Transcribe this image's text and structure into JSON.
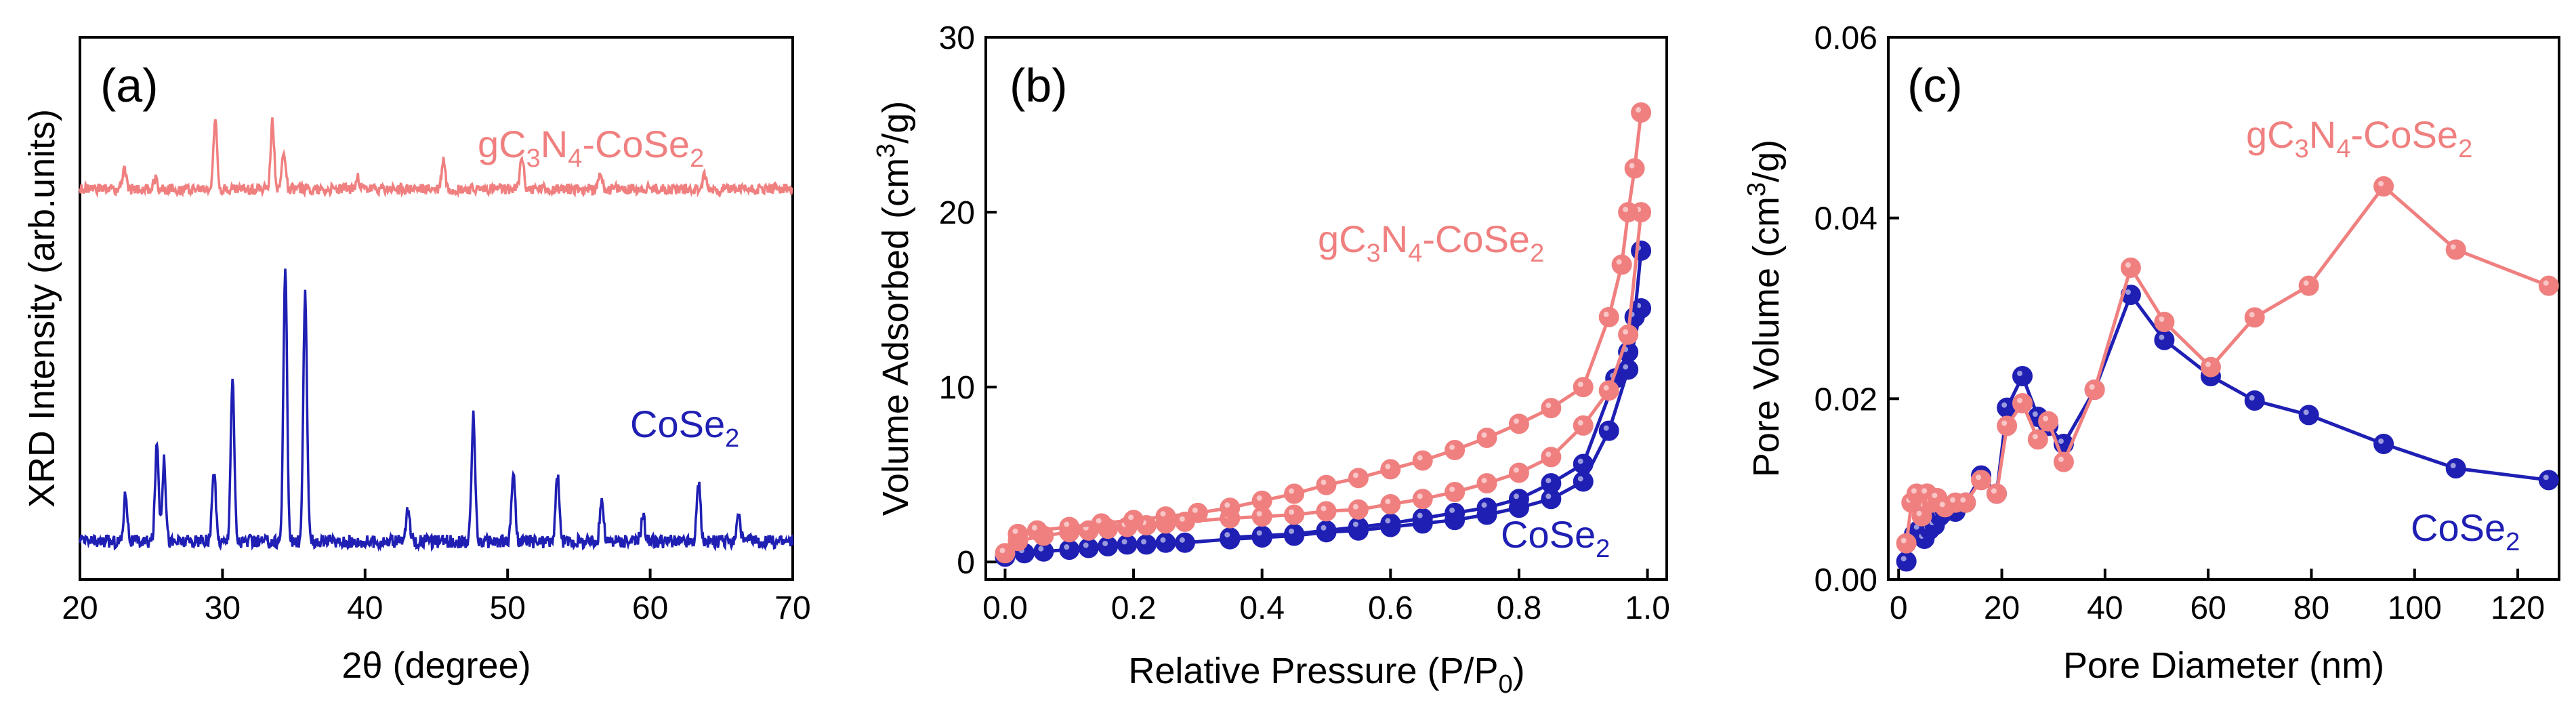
{
  "colors": {
    "gC3N4-CoSe2": "#F08080",
    "CoSe2": "#1F1FB4",
    "axis": "#000000"
  },
  "chart_data": [
    {
      "type": "line",
      "panel_label": "(a)",
      "title": "",
      "xlabel": "2θ (degree)",
      "ylabel": "XRD Intensity (arb.units)",
      "xlim": [
        20,
        70
      ],
      "xticks": [
        "20",
        "30",
        "40",
        "50",
        "60",
        "70"
      ],
      "ylim": [
        0,
        10
      ],
      "yticks_visible": false,
      "series": [
        {
          "name": "gC3N4-CoSe2",
          "label_parts": [
            "gC",
            "3",
            "N",
            "4",
            "-CoSe",
            "2"
          ],
          "baseline": 7.2,
          "noise": 0.2,
          "peaks": [
            [
              23.1,
              0.35
            ],
            [
              25.3,
              0.2
            ],
            [
              29.5,
              1.3
            ],
            [
              33.5,
              1.25
            ],
            [
              34.3,
              0.7
            ],
            [
              39.5,
              0.2
            ],
            [
              45.5,
              0.55
            ],
            [
              51.0,
              0.6
            ],
            [
              56.5,
              0.3
            ],
            [
              63.8,
              0.25
            ]
          ]
        },
        {
          "name": "CoSe2",
          "label_parts": [
            "CoSe",
            "2"
          ],
          "baseline": 0.7,
          "noise": 0.25,
          "peaks": [
            [
              23.2,
              0.9
            ],
            [
              25.4,
              1.8
            ],
            [
              25.9,
              1.5
            ],
            [
              29.4,
              1.3
            ],
            [
              30.7,
              3.0
            ],
            [
              34.4,
              5.1
            ],
            [
              35.8,
              4.6
            ],
            [
              43.0,
              0.6
            ],
            [
              47.6,
              2.3
            ],
            [
              50.4,
              1.3
            ],
            [
              53.5,
              1.2
            ],
            [
              56.6,
              0.8
            ],
            [
              59.5,
              0.5
            ],
            [
              63.4,
              1.1
            ],
            [
              66.2,
              0.5
            ]
          ]
        }
      ]
    },
    {
      "type": "line",
      "panel_label": "(b)",
      "title": "",
      "xlabel_parts": [
        "Relative Pressure (P/P",
        "0",
        ")"
      ],
      "ylabel_parts": [
        "Volume Adsorbed (cm",
        "3",
        "/g)"
      ],
      "xlim": [
        -0.03,
        1.03
      ],
      "xticks": [
        "0.0",
        "0.2",
        "0.4",
        "0.6",
        "0.8",
        "1.0"
      ],
      "ylim": [
        -1,
        30
      ],
      "yticks": [
        "0",
        "10",
        "20",
        "30"
      ],
      "series": [
        {
          "name": "gC3N4-CoSe2 adsorption",
          "label_parts": [
            "gC",
            "3",
            "N",
            "4",
            "-CoSe",
            "2"
          ],
          "x": [
            0.0,
            0.02,
            0.06,
            0.1,
            0.13,
            0.16,
            0.19,
            0.22,
            0.25,
            0.28,
            0.35,
            0.4,
            0.45,
            0.5,
            0.55,
            0.6,
            0.65,
            0.7,
            0.75,
            0.8,
            0.85,
            0.9,
            0.94,
            0.97,
            0.99
          ],
          "y": [
            0.5,
            1.2,
            1.5,
            1.7,
            1.8,
            1.9,
            2.0,
            2.1,
            2.2,
            2.3,
            2.5,
            2.6,
            2.7,
            2.9,
            3.0,
            3.3,
            3.6,
            4.0,
            4.5,
            5.1,
            6.0,
            7.8,
            9.8,
            13.0,
            20.0
          ]
        },
        {
          "name": "gC3N4-CoSe2 desorption",
          "x": [
            0.99,
            0.98,
            0.97,
            0.96,
            0.94,
            0.9,
            0.85,
            0.8,
            0.75,
            0.7,
            0.65,
            0.6,
            0.55,
            0.5,
            0.45,
            0.4,
            0.35,
            0.3,
            0.25,
            0.2,
            0.15,
            0.1,
            0.05,
            0.02
          ],
          "y": [
            25.7,
            22.5,
            20.0,
            17.0,
            14.0,
            10.0,
            8.8,
            7.9,
            7.1,
            6.4,
            5.8,
            5.3,
            4.8,
            4.4,
            3.9,
            3.5,
            3.1,
            2.8,
            2.6,
            2.4,
            2.2,
            2.0,
            1.8,
            1.6
          ]
        },
        {
          "name": "CoSe2 adsorption",
          "label_parts": [
            "CoSe",
            "2"
          ],
          "x": [
            0.0,
            0.03,
            0.06,
            0.1,
            0.13,
            0.16,
            0.19,
            0.22,
            0.25,
            0.28,
            0.35,
            0.4,
            0.45,
            0.5,
            0.55,
            0.6,
            0.65,
            0.7,
            0.75,
            0.8,
            0.85,
            0.9,
            0.94,
            0.97,
            0.99
          ],
          "y": [
            0.3,
            0.5,
            0.6,
            0.7,
            0.8,
            0.9,
            1.0,
            1.0,
            1.1,
            1.1,
            1.3,
            1.4,
            1.5,
            1.7,
            1.8,
            2.0,
            2.2,
            2.4,
            2.7,
            3.1,
            3.6,
            4.6,
            7.5,
            11.0,
            14.5
          ]
        },
        {
          "name": "CoSe2 desorption",
          "x": [
            0.99,
            0.98,
            0.97,
            0.95,
            0.9,
            0.85,
            0.8,
            0.75,
            0.7,
            0.65,
            0.6,
            0.55,
            0.5,
            0.45,
            0.4,
            0.35
          ],
          "y": [
            17.8,
            14.0,
            12.0,
            10.5,
            5.6,
            4.5,
            3.6,
            3.1,
            2.8,
            2.5,
            2.2,
            2.0,
            1.8,
            1.6,
            1.5,
            1.4
          ]
        }
      ]
    },
    {
      "type": "line",
      "panel_label": "(c)",
      "title": "",
      "xlabel": "Pore Diameter (nm)",
      "ylabel_parts": [
        "Pore Volume (cm",
        "3",
        "/g)"
      ],
      "xlim": [
        -2,
        128
      ],
      "xticks": [
        "0",
        "20",
        "40",
        "60",
        "80",
        "100",
        "120"
      ],
      "ylim": [
        0,
        0.06
      ],
      "yticks": [
        "0.00",
        "0.02",
        "0.04",
        "0.06"
      ],
      "series": [
        {
          "name": "gC3N4-CoSe2",
          "label_parts": [
            "gC",
            "3",
            "N",
            "4",
            "-CoSe",
            "2"
          ],
          "x": [
            1.5,
            2.5,
            3.5,
            4.5,
            5.5,
            6.5,
            7.5,
            9,
            11,
            13,
            16,
            19,
            21,
            24,
            27,
            29,
            32,
            38,
            45,
            51.5,
            60.5,
            69,
            79.5,
            94,
            108,
            126
          ],
          "y": [
            0.004,
            0.0085,
            0.0095,
            0.007,
            0.0095,
            0.0085,
            0.009,
            0.008,
            0.0085,
            0.0085,
            0.011,
            0.0095,
            0.017,
            0.0195,
            0.0155,
            0.0175,
            0.013,
            0.021,
            0.0345,
            0.0285,
            0.0235,
            0.029,
            0.0325,
            0.0435,
            0.0365,
            0.0325
          ]
        },
        {
          "name": "CoSe2",
          "label_parts": [
            "CoSe",
            "2"
          ],
          "x": [
            1.5,
            3,
            4,
            5,
            6,
            7,
            8,
            9,
            11,
            13,
            16,
            19,
            21,
            24,
            27,
            29,
            32,
            38,
            45,
            51.5,
            60.5,
            69,
            79.5,
            94,
            108,
            126
          ],
          "y": [
            0.002,
            0.005,
            0.0055,
            0.0045,
            0.0055,
            0.006,
            0.007,
            0.0075,
            0.0075,
            0.0085,
            0.0115,
            0.0095,
            0.019,
            0.0225,
            0.018,
            0.017,
            0.015,
            0.021,
            0.0315,
            0.0265,
            0.0225,
            0.0198,
            0.0182,
            0.015,
            0.0123,
            0.011
          ]
        }
      ]
    }
  ]
}
